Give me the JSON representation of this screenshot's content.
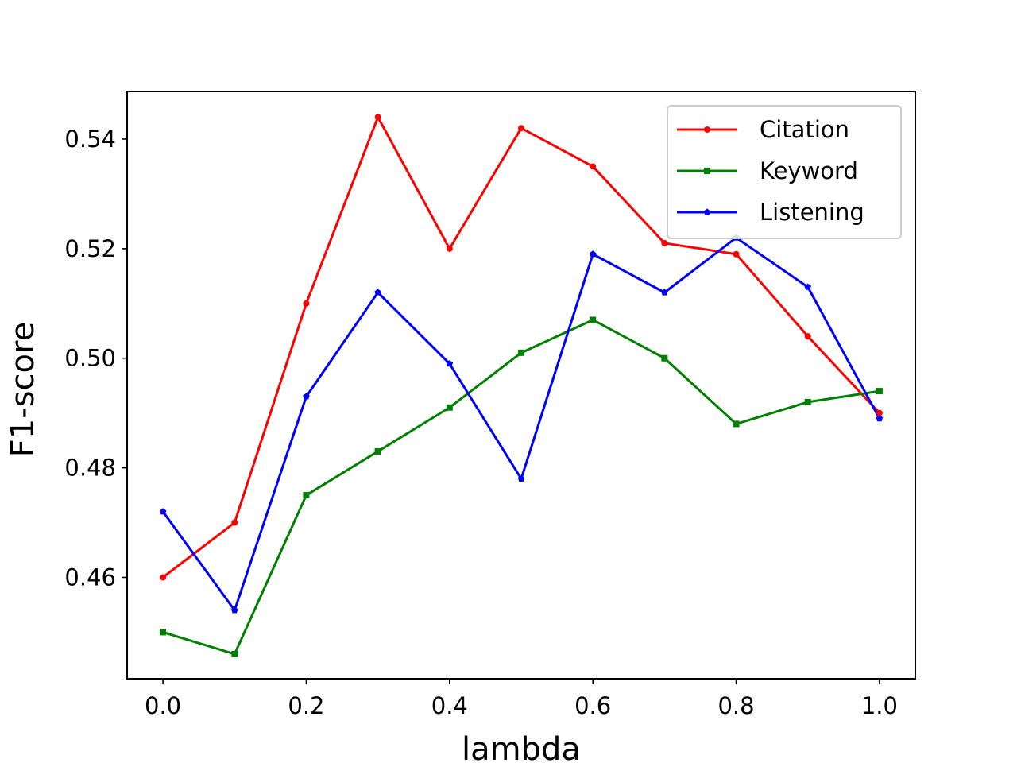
{
  "chart_data": {
    "type": "line",
    "title": "",
    "xlabel": "lambda",
    "ylabel": "F1-score",
    "x": [
      0.0,
      0.1,
      0.2,
      0.3,
      0.4,
      0.5,
      0.6,
      0.7,
      0.8,
      0.9,
      1.0
    ],
    "xlim": [
      -0.05,
      1.05
    ],
    "ylim": [
      0.4415,
      0.5487
    ],
    "xticks": [
      0.0,
      0.2,
      0.4,
      0.6,
      0.8,
      1.0
    ],
    "xtick_labels": [
      "0.0",
      "0.2",
      "0.4",
      "0.6",
      "0.8",
      "1.0"
    ],
    "yticks": [
      0.46,
      0.48,
      0.5,
      0.52,
      0.54
    ],
    "ytick_labels": [
      "0.46",
      "0.48",
      "0.50",
      "0.52",
      "0.54"
    ],
    "grid": false,
    "legend_position": "top-right",
    "series": [
      {
        "name": "Citation",
        "color": "#ff0000",
        "marker": "circle",
        "values": [
          0.46,
          0.47,
          0.51,
          0.544,
          0.52,
          0.542,
          0.535,
          0.521,
          0.519,
          0.504,
          0.49
        ]
      },
      {
        "name": "Keyword",
        "color": "#008000",
        "marker": "square",
        "values": [
          0.45,
          0.446,
          0.475,
          0.483,
          0.491,
          0.501,
          0.507,
          0.5,
          0.488,
          0.492,
          0.494
        ]
      },
      {
        "name": "Listening",
        "color": "#0000ff",
        "marker": "pentagon",
        "values": [
          0.472,
          0.454,
          0.493,
          0.512,
          0.499,
          0.478,
          0.519,
          0.512,
          0.522,
          0.513,
          0.489
        ]
      }
    ]
  }
}
